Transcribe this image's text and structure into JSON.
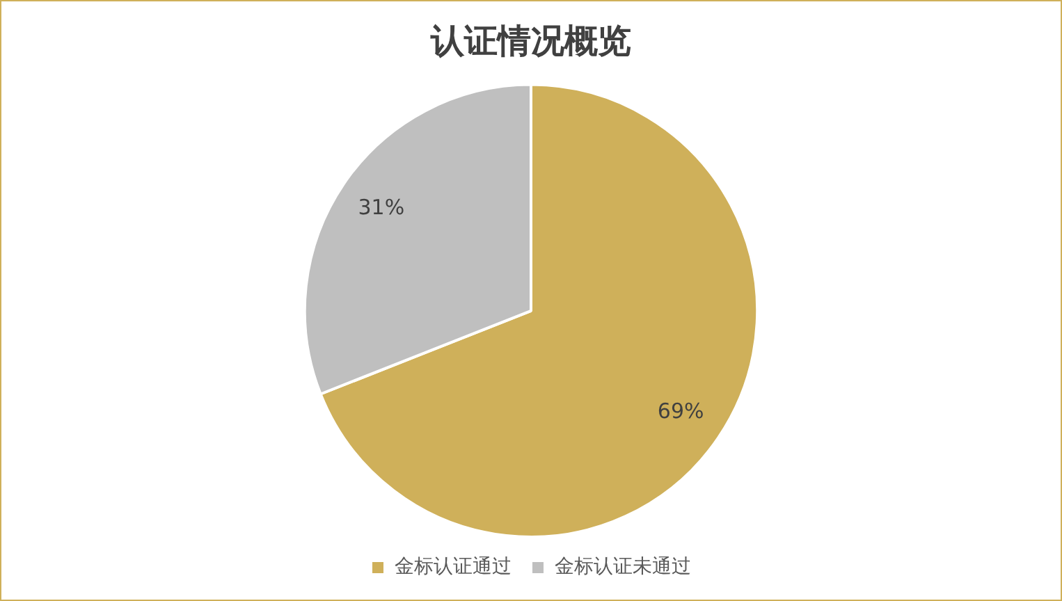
{
  "chart_data": {
    "type": "pie",
    "title": "认证情况概览",
    "categories": [
      "金标认证通过",
      "金标认证未通过"
    ],
    "values": [
      69,
      31
    ],
    "colors": [
      "#cfb05a",
      "#bfbfbf"
    ],
    "value_labels": [
      "69%",
      "31%"
    ],
    "legend": "bottom"
  }
}
